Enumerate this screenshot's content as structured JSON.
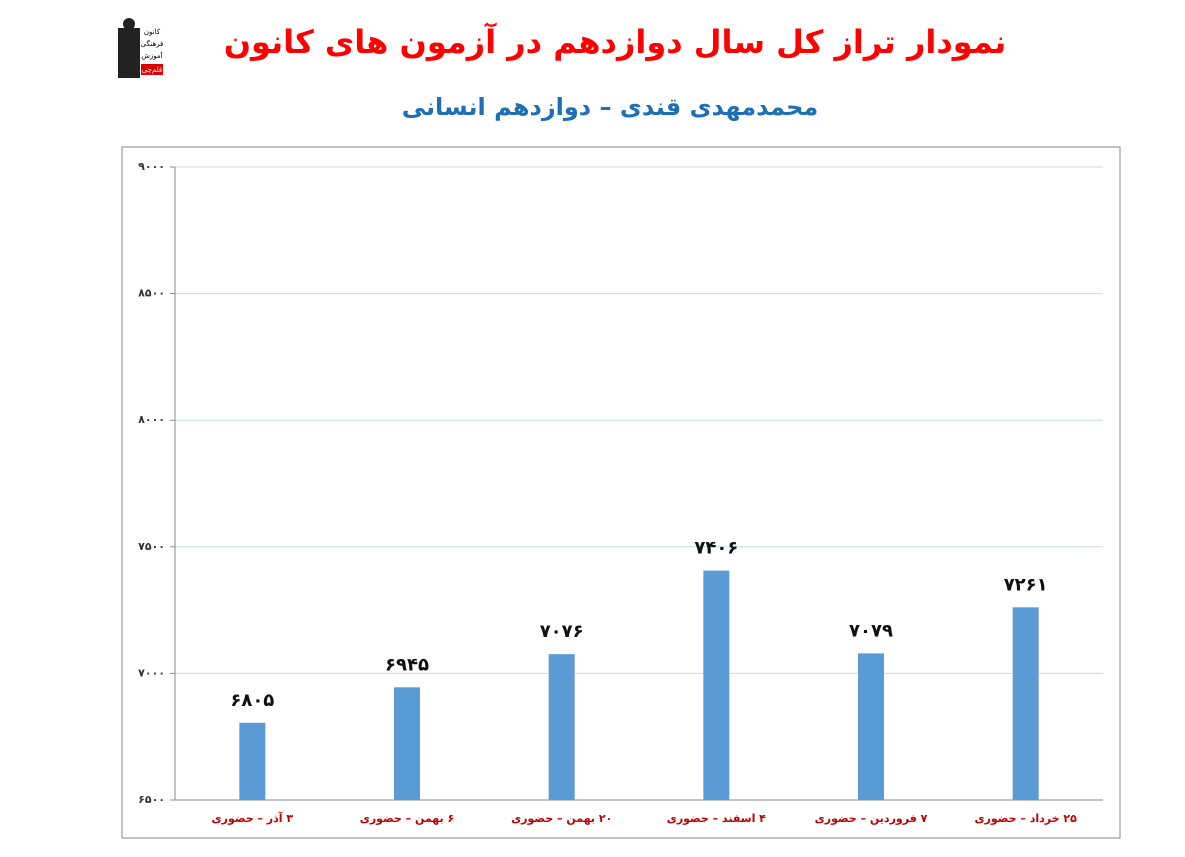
{
  "chart_data": {
    "type": "bar",
    "title": "نمودار تراز کل سال دوازدهم در آزمون های کانون",
    "subtitle": "محمدمهدی قندی – دوازدهم انسانی",
    "logo": [
      "کانون",
      "فرهنگی",
      "آموزش",
      "قلم‌چی"
    ],
    "categories": [
      "۳ آذر – حضوری",
      "۶ بهمن – حضوری",
      "۲۰ بهمن – حضوری",
      "۴ اسفند – حضوری",
      "۷ فروردین – حضوری",
      "۲۵ خرداد – حضوری"
    ],
    "values": [
      6805,
      6945,
      7076,
      7406,
      7079,
      7261
    ],
    "value_labels": [
      "۶۸۰۵",
      "۶۹۴۵",
      "۷۰۷۶",
      "۷۴۰۶",
      "۷۰۷۹",
      "۷۲۶۱"
    ],
    "color": "#5b9bd5",
    "ylim": [
      6500,
      9000
    ],
    "yticks": [
      {
        "value": 6500,
        "label": "۶۵۰۰"
      },
      {
        "value": 7000,
        "label": "۷۰۰۰"
      },
      {
        "value": 7500,
        "label": "۷۵۰۰"
      },
      {
        "value": 8000,
        "label": "۸۰۰۰"
      },
      {
        "value": 8500,
        "label": "۸۵۰۰"
      },
      {
        "value": 9000,
        "label": "۹۰۰۰"
      }
    ],
    "grid": true
  }
}
